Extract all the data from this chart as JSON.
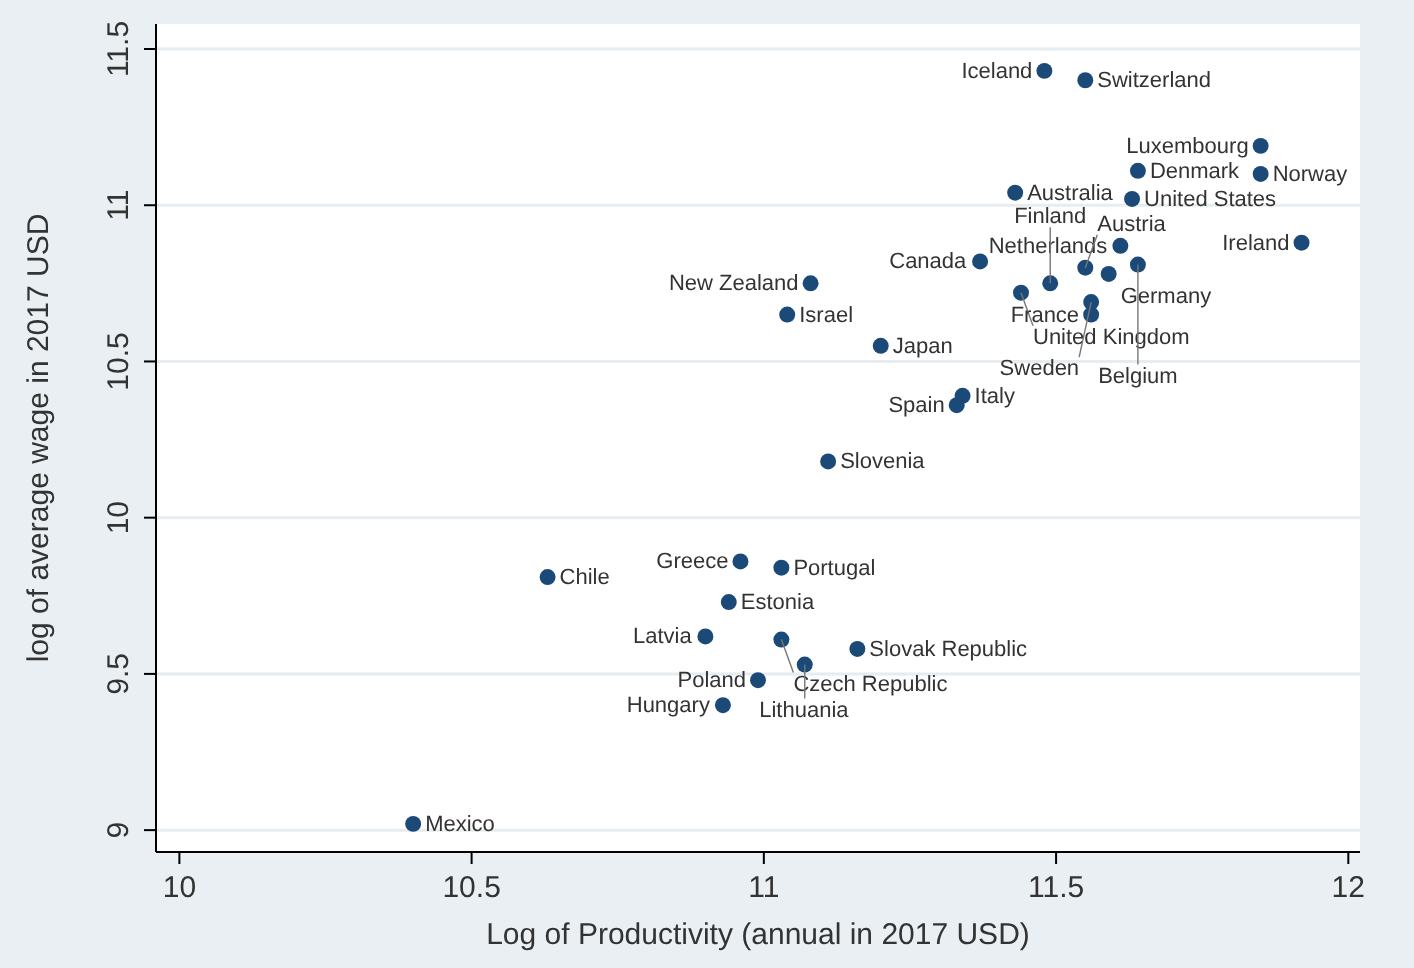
{
  "chart_data": {
    "type": "scatter",
    "xlabel": "Log of Productivity (annual in 2017 USD)",
    "ylabel": "log of average wage in 2017 USD",
    "x": [
      11.48,
      11.55,
      11.85,
      11.64,
      11.85,
      11.43,
      11.63,
      11.61,
      11.92,
      11.37,
      11.08,
      11.04,
      11.2,
      11.44,
      11.49,
      11.55,
      11.59,
      11.64,
      11.56,
      11.56,
      11.34,
      11.33,
      11.11,
      10.96,
      11.03,
      10.63,
      10.94,
      10.9,
      11.03,
      11.16,
      11.07,
      10.99,
      10.93,
      10.4
    ],
    "series": [
      {
        "color": "#1b4a78",
        "values": [
          11.43,
          11.4,
          11.19,
          11.11,
          11.1,
          11.04,
          11.02,
          10.87,
          10.88,
          10.82,
          10.75,
          10.65,
          10.55,
          10.72,
          10.75,
          10.8,
          10.78,
          10.81,
          10.69,
          10.65,
          10.39,
          10.36,
          10.18,
          9.86,
          9.84,
          9.81,
          9.73,
          9.62,
          9.61,
          9.58,
          9.53,
          9.48,
          9.4,
          9.02
        ]
      }
    ],
    "annotations": [
      {
        "text": "Iceland",
        "x": 11.48,
        "y": 11.43
      },
      {
        "text": "Switzerland",
        "x": 11.55,
        "y": 11.4
      },
      {
        "text": "Luxembourg",
        "x": 11.85,
        "y": 11.19
      },
      {
        "text": "Denmark",
        "x": 11.64,
        "y": 11.11
      },
      {
        "text": "Norway",
        "x": 11.85,
        "y": 11.1
      },
      {
        "text": "Australia",
        "x": 11.43,
        "y": 11.04
      },
      {
        "text": "United States",
        "x": 11.63,
        "y": 11.02
      },
      {
        "text": "Netherlands",
        "x": 11.61,
        "y": 10.87
      },
      {
        "text": "Ireland",
        "x": 11.92,
        "y": 10.88
      },
      {
        "text": "Canada",
        "x": 11.37,
        "y": 10.82
      },
      {
        "text": "New Zealand",
        "x": 11.08,
        "y": 10.75
      },
      {
        "text": "Israel",
        "x": 11.04,
        "y": 10.65
      },
      {
        "text": "Japan",
        "x": 11.2,
        "y": 10.55
      },
      {
        "text": "United Kingdom",
        "x": 11.44,
        "y": 10.72
      },
      {
        "text": "Finland",
        "x": 11.49,
        "y": 10.75
      },
      {
        "text": "Austria",
        "x": 11.55,
        "y": 10.8
      },
      {
        "text": "Germany",
        "x": 11.59,
        "y": 10.78
      },
      {
        "text": "Belgium",
        "x": 11.64,
        "y": 10.81
      },
      {
        "text": "Sweden",
        "x": 11.56,
        "y": 10.69
      },
      {
        "text": "France",
        "x": 11.56,
        "y": 10.65
      },
      {
        "text": "Italy",
        "x": 11.34,
        "y": 10.39
      },
      {
        "text": "Spain",
        "x": 11.33,
        "y": 10.36
      },
      {
        "text": "Slovenia",
        "x": 11.11,
        "y": 10.18
      },
      {
        "text": "Greece",
        "x": 10.96,
        "y": 9.86
      },
      {
        "text": "Portugal",
        "x": 11.03,
        "y": 9.84
      },
      {
        "text": "Chile",
        "x": 10.63,
        "y": 9.81
      },
      {
        "text": "Estonia",
        "x": 10.94,
        "y": 9.73
      },
      {
        "text": "Latvia",
        "x": 10.9,
        "y": 9.62
      },
      {
        "text": "Czech Republic",
        "x": 11.03,
        "y": 9.61
      },
      {
        "text": "Slovak Republic",
        "x": 11.16,
        "y": 9.58
      },
      {
        "text": "Lithuania",
        "x": 11.07,
        "y": 9.53
      },
      {
        "text": "Poland",
        "x": 10.99,
        "y": 9.48
      },
      {
        "text": "Hungary",
        "x": 10.93,
        "y": 9.4
      },
      {
        "text": "Mexico",
        "x": 10.4,
        "y": 9.02
      }
    ],
    "xlim": [
      9.96,
      12.02
    ],
    "ylim": [
      8.93,
      11.58
    ],
    "xticks": [
      {
        "value": 10,
        "label": "10"
      },
      10.5,
      11,
      11.5,
      12
    ],
    "yticks": [
      9,
      9.5,
      {
        "value": 10,
        "label": "10"
      },
      10.5,
      11,
      11.5
    ],
    "grid": "y",
    "marker": "circle"
  }
}
